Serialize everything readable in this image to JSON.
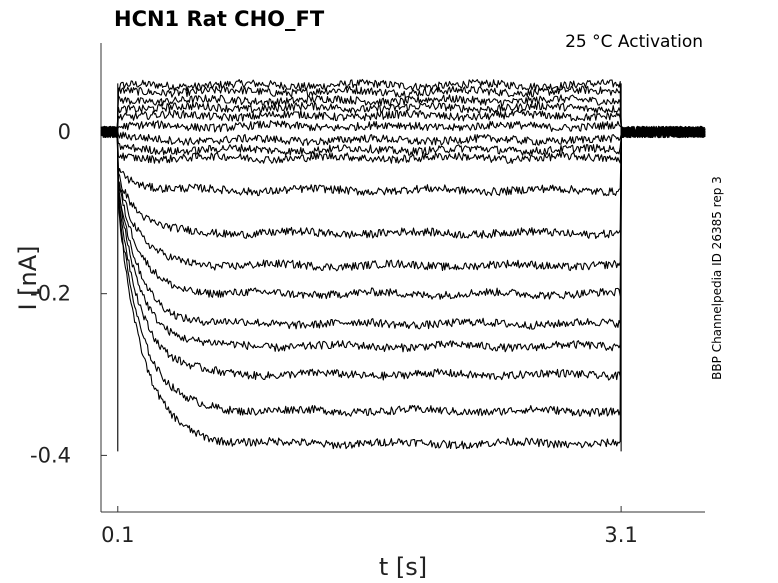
{
  "chart_data": {
    "type": "line",
    "title": "HCN1  Rat  CHO_FT",
    "annotation": "25 °C  Activation",
    "side_label": "BBP Channelpedia ID 26385 rep 3",
    "xlabel": "t [s]",
    "ylabel": "I [nA]",
    "x_ticks": [
      0.1,
      3.1
    ],
    "x_tick_labels": [
      "0.1",
      "3.1"
    ],
    "y_ticks": [
      0,
      -0.2,
      -0.4
    ],
    "y_tick_labels": [
      "0",
      "-0.2",
      "-0.4"
    ],
    "xlim": [
      -0.0,
      3.6
    ],
    "ylim": [
      -0.47,
      0.11
    ],
    "grid": false,
    "pulse_start": 0.1,
    "pulse_end": 3.1,
    "series": [
      {
        "initial": 0.055,
        "steady": 0.058
      },
      {
        "initial": 0.05,
        "steady": 0.05
      },
      {
        "initial": 0.04,
        "steady": 0.039
      },
      {
        "initial": 0.03,
        "steady": 0.03
      },
      {
        "initial": 0.02,
        "steady": 0.02
      },
      {
        "initial": 0.007,
        "steady": 0.007
      },
      {
        "initial": -0.005,
        "steady": -0.01
      },
      {
        "initial": -0.02,
        "steady": -0.022
      },
      {
        "initial": -0.03,
        "steady": -0.032
      },
      {
        "initial": -0.045,
        "steady": -0.072
      },
      {
        "initial": -0.05,
        "steady": -0.125
      },
      {
        "initial": -0.055,
        "steady": -0.165
      },
      {
        "initial": -0.06,
        "steady": -0.2
      },
      {
        "initial": -0.065,
        "steady": -0.237
      },
      {
        "initial": -0.07,
        "steady": -0.265
      },
      {
        "initial": -0.075,
        "steady": -0.3
      },
      {
        "initial": -0.08,
        "steady": -0.345
      },
      {
        "initial": -0.085,
        "steady": -0.385
      }
    ]
  }
}
